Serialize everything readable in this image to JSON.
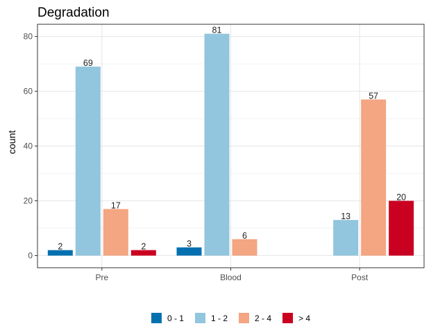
{
  "chart_data": {
    "type": "bar",
    "title": "Degradation",
    "xlabel": "",
    "ylabel": "count",
    "categories": [
      "Pre",
      "Blood",
      "Post"
    ],
    "ylim": [
      0,
      85
    ],
    "yticks": [
      0,
      20,
      40,
      60,
      80
    ],
    "grid": true,
    "legend_position": "bottom",
    "series": [
      {
        "name": "0 - 1",
        "color": "#0570b0",
        "values": [
          2,
          3,
          null
        ]
      },
      {
        "name": "1 - 2",
        "color": "#92c5de",
        "values": [
          69,
          81,
          13
        ]
      },
      {
        "name": "2 - 4",
        "color": "#f4a582",
        "values": [
          17,
          6,
          57
        ]
      },
      {
        "name": "> 4",
        "color": "#ca0020",
        "values": [
          2,
          null,
          20
        ]
      }
    ]
  }
}
